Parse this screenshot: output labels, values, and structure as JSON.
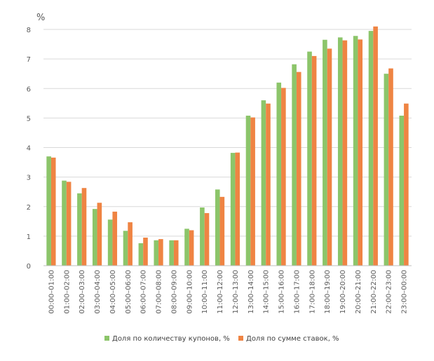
{
  "chart_data": {
    "type": "bar",
    "y_unit_label": "%",
    "ylim": [
      0,
      8
    ],
    "yticks": [
      0,
      1,
      2,
      3,
      4,
      5,
      6,
      7,
      8
    ],
    "grid": true,
    "legend_position": "bottom",
    "categories": [
      "00:00–01:00",
      "01:00–02:00",
      "02:00–03:00",
      "03:00–04:00",
      "04:00–05:00",
      "05:00–06:00",
      "06:00–07:00",
      "07:00–08:00",
      "08:00–09:00",
      "09:00–10:00",
      "10:00–11:00",
      "11:00–12:00",
      "12:00–13:00",
      "13:00–14:00",
      "14:00–15:00",
      "15:00–16:00",
      "16:00–17:00",
      "17:00–18:00",
      "18:00–19:00",
      "19:00–20:00",
      "20:00–21:00",
      "21:00–22:00",
      "22:00–23:00",
      "23:00–00:00"
    ],
    "series": [
      {
        "name": "Доля по количеству купонов, %",
        "color": "#8cc56a",
        "values": [
          3.7,
          2.88,
          2.45,
          1.92,
          1.56,
          1.18,
          0.76,
          0.86,
          0.86,
          1.25,
          1.97,
          2.58,
          3.82,
          5.08,
          5.6,
          6.2,
          6.82,
          7.25,
          7.65,
          7.73,
          7.78,
          7.95,
          6.5,
          5.08
        ]
      },
      {
        "name": "Доля по сумме ставок, %",
        "color": "#ef8443",
        "values": [
          3.66,
          2.84,
          2.63,
          2.13,
          1.83,
          1.47,
          0.95,
          0.9,
          0.86,
          1.2,
          1.78,
          2.33,
          3.83,
          5.02,
          5.49,
          6.02,
          6.56,
          7.1,
          7.35,
          7.63,
          7.66,
          8.1,
          6.68,
          5.49
        ]
      }
    ]
  }
}
